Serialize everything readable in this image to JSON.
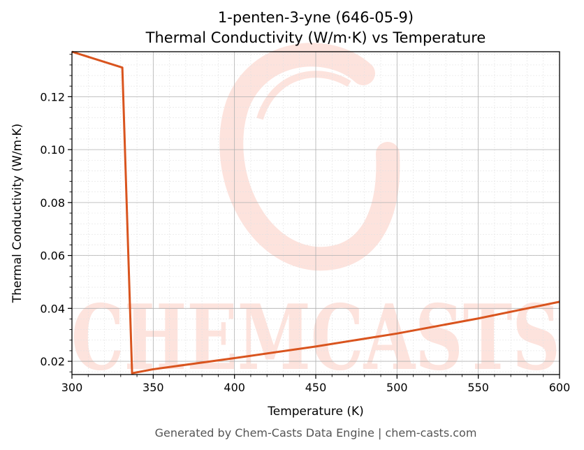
{
  "chart_data": {
    "type": "line",
    "title": "1-penten-3-yne (646-05-9)",
    "subtitle": "Thermal Conductivity (W/m·K) vs Temperature",
    "xlabel": "Temperature (K)",
    "ylabel": "Thermal Conductivity (W/m·K)",
    "xlim": [
      300,
      600
    ],
    "ylim": [
      0.015,
      0.137
    ],
    "xticks": [
      300,
      350,
      400,
      450,
      500,
      550,
      600
    ],
    "yticks": [
      0.02,
      0.04,
      0.06,
      0.08,
      0.1,
      0.12
    ],
    "ytick_labels": [
      "0.02",
      "0.04",
      "0.06",
      "0.08",
      "0.10",
      "0.12"
    ],
    "grid": true,
    "series": [
      {
        "color": "#d9541e",
        "x": [
          300,
          331,
          337,
          350,
          400,
          450,
          500,
          550,
          600
        ],
        "y": [
          0.137,
          0.131,
          0.0155,
          0.017,
          0.0212,
          0.0256,
          0.0305,
          0.0362,
          0.0425
        ]
      }
    ]
  },
  "watermark": {
    "text": "CHEMCASTS",
    "color": "#fde3dd"
  },
  "footer": "Generated by Chem-Casts Data Engine | chem-casts.com"
}
